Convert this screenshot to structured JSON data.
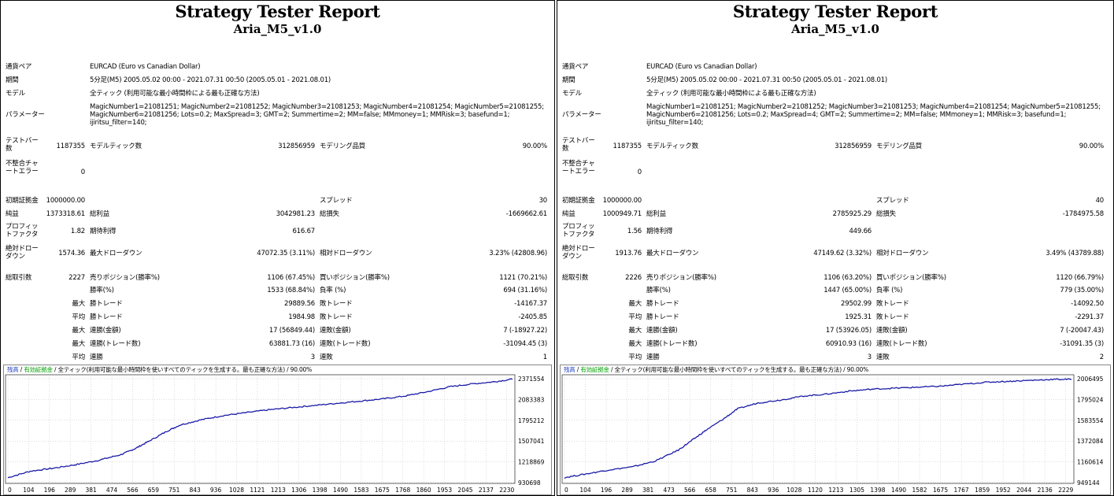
{
  "reports": [
    {
      "title": "Strategy Tester Report",
      "subtitle": "Aria_M5_v1.0",
      "labels": {
        "symbol": "通貨ペア",
        "period": "期間",
        "model": "モデル",
        "parameters": "パラメーター",
        "bars": "テストバー数",
        "ticks": "モデルティック数",
        "quality": "モデリング品質",
        "mismatch": "不整合チャートエラー",
        "initial_deposit": "初期証拠金",
        "spread": "スプレッド",
        "net_profit": "純益",
        "gross_profit": "総利益",
        "gross_loss": "総損失",
        "profit_factor": "プロフィットファクタ",
        "expected_payoff": "期待利得",
        "abs_dd": "絶対ドローダウン",
        "max_dd": "最大ドローダウン",
        "rel_dd": "相対ドローダウン",
        "total_trades": "総取引数",
        "short_positions": "売りポジション(勝率%)",
        "long_positions": "買いポジション(勝率%)",
        "win_rate": "勝率(%)",
        "loss_rate": "負率 (%)",
        "largest": "最大",
        "average": "平均",
        "maximum": "最大",
        "win_trade": "勝トレード",
        "loss_trade": "敗トレード",
        "consec_wins_money": "連勝(金額)",
        "consec_losses_money": "連敗(金額)",
        "consec_wins_count": "連勝(トレード数)",
        "consec_losses_count": "連敗(トレード数)",
        "consec_wins": "連勝",
        "consec_losses": "連敗"
      },
      "values": {
        "symbol": "EURCAD (Euro vs Canadian Dollar)",
        "period": "5分足(M5) 2005.05.02 00:00 - 2021.07.31 00:50 (2005.05.01 - 2021.08.01)",
        "model": "全ティック (利用可能な最小時間枠による最も正確な方法)",
        "parameters": "MagicNumber1=21081251; MagicNumber2=21081252; MagicNumber3=21081253; MagicNumber4=21081254; MagicNumber5=21081255; MagicNumber6=21081256; Lots=0.2; MaxSpread=3; GMT=2; Summertime=2; MM=false; MMmoney=1; MMRisk=3; basefund=1; ijiritsu_filter=140;",
        "bars": "1187355",
        "ticks": "312856959",
        "quality": "90.00%",
        "mismatch": "0",
        "initial_deposit": "1000000.00",
        "spread": "30",
        "net_profit": "1373318.61",
        "gross_profit": "3042981.23",
        "gross_loss": "-1669662.61",
        "profit_factor": "1.82",
        "expected_payoff": "616.67",
        "abs_dd": "1574.36",
        "max_dd": "47072.35 (3.11%)",
        "rel_dd": "3.23% (42808.96)",
        "total_trades": "2227",
        "short_positions": "1106 (67.45%)",
        "long_positions": "1121 (70.21%)",
        "win_rate": "1533 (68.84%)",
        "loss_rate": "694 (31.16%)",
        "largest_win": "29889.56",
        "largest_loss": "-14167.37",
        "average_win": "1984.98",
        "average_loss": "-2405.85",
        "max_consec_wins_money": "17 (56849.44)",
        "max_consec_losses_money": "7 (-18927.22)",
        "max_consec_profit": "63881.73 (16)",
        "max_consec_loss": "-31094.45 (3)",
        "avg_consec_wins": "3",
        "avg_consec_losses": "1"
      },
      "chart": {
        "legend_balance": "残高",
        "legend_equity": "有効証拠金",
        "legend_model": "全ティック(利用可能な最小時間枠を使いすべてのティックを生成する。最も正確な方法)",
        "legend_quality": "90.00%"
      },
      "chart_data": {
        "type": "line",
        "title": "",
        "x_ticks": [
          "0",
          "104",
          "196",
          "289",
          "381",
          "474",
          "566",
          "659",
          "751",
          "843",
          "936",
          "1028",
          "1121",
          "1213",
          "1306",
          "1398",
          "1490",
          "1583",
          "1675",
          "1768",
          "1860",
          "1953",
          "2045",
          "2137",
          "2230"
        ],
        "y_ticks": [
          "930698",
          "1218869",
          "1507041",
          "1795212",
          "2083383",
          "2371554"
        ],
        "ylim": [
          930698,
          2371554
        ],
        "xlim": [
          0,
          2227
        ],
        "line_color": "#1a1aa6",
        "series": [
          {
            "x": [
              0,
              100,
              200,
              300,
              400,
              500,
              560,
              620,
              700,
              760,
              850,
              950,
              1050,
              1150,
              1250,
              1350,
              1450,
              1550,
              1650,
              1750,
              1850,
              1950,
              2050,
              2150,
              2227
            ],
            "y": [
              1000000,
              1090000,
              1130000,
              1180000,
              1240000,
              1320000,
              1400000,
              1500000,
              1640000,
              1730000,
              1800000,
              1860000,
              1900000,
              1940000,
              1970000,
              2000000,
              2030000,
              2060000,
              2090000,
              2130000,
              2190000,
              2260000,
              2300000,
              2330000,
              2365000
            ]
          }
        ]
      }
    },
    {
      "title": "Strategy Tester Report",
      "subtitle": "Aria_M5_v1.0",
      "labels": {
        "symbol": "通貨ペア",
        "period": "期間",
        "model": "モデル",
        "parameters": "パラメーター",
        "bars": "テストバー数",
        "ticks": "モデルティック数",
        "quality": "モデリング品質",
        "mismatch": "不整合チャートエラー",
        "initial_deposit": "初期証拠金",
        "spread": "スプレッド",
        "net_profit": "純益",
        "gross_profit": "総利益",
        "gross_loss": "総損失",
        "profit_factor": "プロフィットファクタ",
        "expected_payoff": "期待利得",
        "abs_dd": "絶対ドローダウン",
        "max_dd": "最大ドローダウン",
        "rel_dd": "相対ドローダウン",
        "total_trades": "総取引数",
        "short_positions": "売りポジション(勝率%)",
        "long_positions": "買いポジション(勝率%)",
        "win_rate": "勝率(%)",
        "loss_rate": "負率 (%)",
        "largest": "最大",
        "average": "平均",
        "maximum": "最大",
        "win_trade": "勝トレード",
        "loss_trade": "敗トレード",
        "consec_wins_money": "連勝(金額)",
        "consec_losses_money": "連敗(金額)",
        "consec_wins_count": "連勝(トレード数)",
        "consec_losses_count": "連敗(トレード数)",
        "consec_wins": "連勝",
        "consec_losses": "連敗"
      },
      "values": {
        "symbol": "EURCAD (Euro vs Canadian Dollar)",
        "period": "5分足(M5) 2005.05.02 00:00 - 2021.07.31 00:50 (2005.05.01 - 2021.08.01)",
        "model": "全ティック (利用可能な最小時間枠による最も正確な方法)",
        "parameters": "MagicNumber1=21081251; MagicNumber2=21081252; MagicNumber3=21081253; MagicNumber4=21081254; MagicNumber5=21081255; MagicNumber6=21081256; Lots=0.2; MaxSpread=4; GMT=2; Summertime=2; MM=false; MMmoney=1; MMRisk=3; basefund=1; ijiritsu_filter=140;",
        "bars": "1187355",
        "ticks": "312856959",
        "quality": "90.00%",
        "mismatch": "0",
        "initial_deposit": "1000000.00",
        "spread": "40",
        "net_profit": "1000949.71",
        "gross_profit": "2785925.29",
        "gross_loss": "-1784975.58",
        "profit_factor": "1.56",
        "expected_payoff": "449.66",
        "abs_dd": "1913.76",
        "max_dd": "47149.62 (3.32%)",
        "rel_dd": "3.49% (43789.88)",
        "total_trades": "2226",
        "short_positions": "1106 (63.20%)",
        "long_positions": "1120 (66.79%)",
        "win_rate": "1447 (65.00%)",
        "loss_rate": "779 (35.00%)",
        "largest_win": "29502.99",
        "largest_loss": "-14092.50",
        "average_win": "1925.31",
        "average_loss": "-2291.37",
        "max_consec_wins_money": "17 (53926.05)",
        "max_consec_losses_money": "7 (-20047.43)",
        "max_consec_profit": "60910.93 (16)",
        "max_consec_loss": "-31091.35 (3)",
        "avg_consec_wins": "3",
        "avg_consec_losses": "2"
      },
      "chart": {
        "legend_balance": "残高",
        "legend_equity": "有効証拠金",
        "legend_model": "全ティック(利用可能な最小時間枠を使いすべてのティックを生成する。最も正確な方法)",
        "legend_quality": "90.00%"
      },
      "chart_data": {
        "type": "line",
        "title": "",
        "x_ticks": [
          "0",
          "104",
          "196",
          "289",
          "381",
          "473",
          "566",
          "658",
          "751",
          "843",
          "936",
          "1028",
          "1120",
          "1213",
          "1305",
          "1398",
          "1490",
          "1582",
          "1675",
          "1767",
          "1859",
          "1952",
          "2044",
          "2136",
          "2229"
        ],
        "y_ticks": [
          "949144",
          "1160614",
          "1372084",
          "1583554",
          "1795024",
          "2006495"
        ],
        "ylim": [
          949144,
          2006495
        ],
        "xlim": [
          0,
          2226
        ],
        "line_color": "#1a1aa6",
        "series": [
          {
            "x": [
              0,
              100,
              200,
              300,
              400,
              500,
              560,
              620,
              700,
              760,
              850,
              950,
              1050,
              1150,
              1250,
              1350,
              1450,
              1550,
              1650,
              1750,
              1850,
              1950,
              2050,
              2150,
              2226
            ],
            "y": [
              1000000,
              1040000,
              1080000,
              1110000,
              1170000,
              1280000,
              1380000,
              1480000,
              1600000,
              1700000,
              1760000,
              1790000,
              1830000,
              1850000,
              1880000,
              1900000,
              1910000,
              1920000,
              1930000,
              1950000,
              1970000,
              1980000,
              1990000,
              2000000,
              2000000
            ]
          }
        ]
      }
    }
  ]
}
